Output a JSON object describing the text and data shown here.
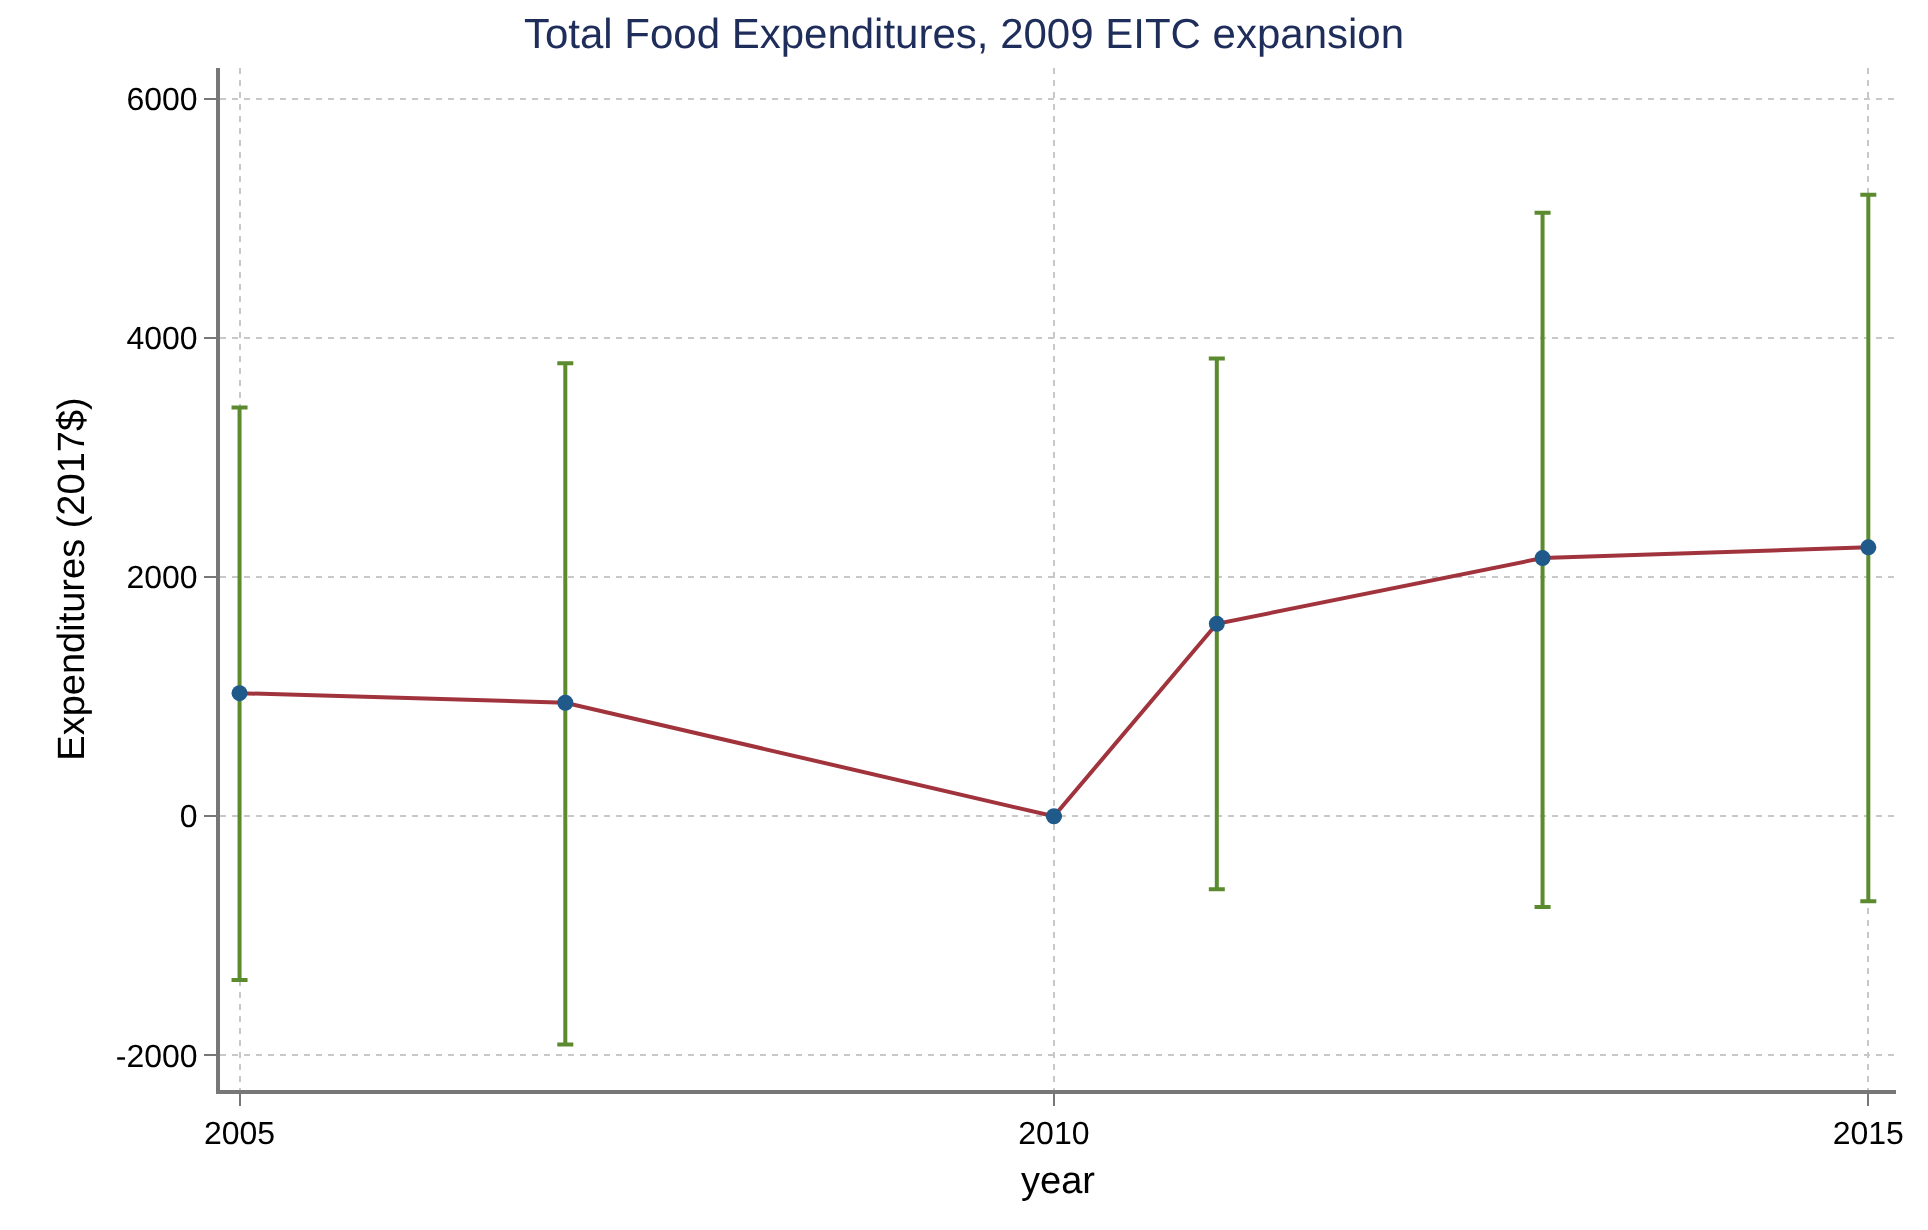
{
  "chart_data": {
    "type": "line",
    "title": "Total Food Expenditures, 2009 EITC expansion",
    "xlabel": "year",
    "ylabel": "Expenditures (2017$)",
    "x": [
      2005,
      2007,
      2010,
      2011,
      2013,
      2015
    ],
    "series": [
      {
        "color": "#a0333c",
        "colors": [
          "#1f5a8a",
          "#1f5a8a",
          "#1f5a8a",
          "#1f5a8a",
          "#1f5a8a",
          "#1f5a8a"
        ],
        "values": [
          1030,
          950,
          0,
          1610,
          2160,
          2250
        ],
        "errors": [
          [
            -1370,
            3420
          ],
          [
            -1910,
            3790
          ],
          null,
          [
            -610,
            3830
          ],
          [
            -760,
            5050
          ],
          [
            -710,
            5200
          ]
        ]
      }
    ],
    "xlim": [
      2004.88,
      2015.17
    ],
    "xticks": [
      2005,
      2010,
      2015
    ],
    "ylim": [
      -2290,
      6260
    ],
    "yticks": [
      -2000,
      0,
      2000,
      4000,
      6000
    ],
    "grid": true,
    "marker": "circle",
    "line_style": "solid"
  }
}
